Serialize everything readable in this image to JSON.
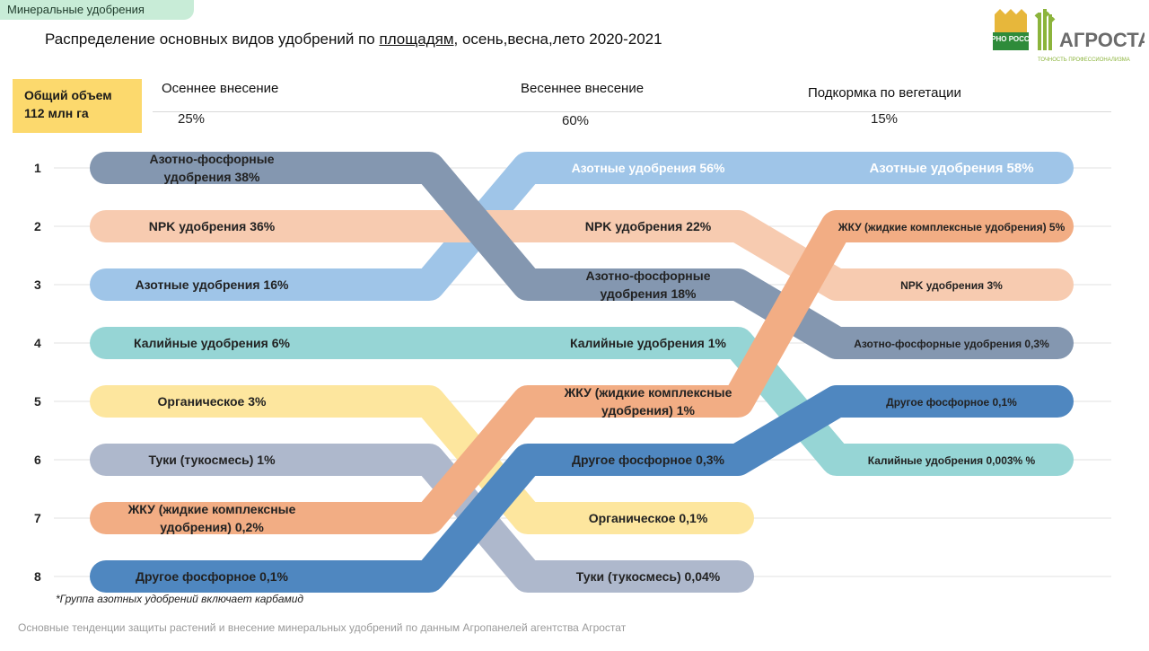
{
  "tag": "Минеральные удобрения",
  "title": {
    "before": "Распределение основных видов удобрений по ",
    "underlined": "площадям",
    "after": ", осень,весна,лето 2020-2021"
  },
  "logo": {
    "left_text": "ЗЕРНО РОССИИ",
    "brand": "АГРОСТАТ",
    "tagline": "ТОЧНОСТЬ ПРОФЕССИОНАЛИЗМА"
  },
  "volume": {
    "line1": "Общий объем",
    "line2": "112 млн га"
  },
  "footnote": "*Группа азотных удобрений включает карбамид",
  "footer": "Основные тенденции защиты растений и внесение минеральных удобрений  по данным Агропанелей агентства Агростат",
  "colors": {
    "nitrogen": "#9fc5e8",
    "npk": "#f7cbb0",
    "nitro_phos": "#8497b0",
    "potash": "#96d5d5",
    "organic": "#fde69e",
    "tuki": "#aeb8cc",
    "zhku": "#f2ad84",
    "other_phos": "#4f87c0"
  },
  "chart_data": {
    "type": "bump",
    "row_labels": [
      "1",
      "2",
      "3",
      "4",
      "5",
      "6",
      "7",
      "8"
    ],
    "columns": [
      {
        "name": "Осеннее внесение",
        "share": "25%"
      },
      {
        "name": "Весеннее внесение",
        "share": "60%"
      },
      {
        "name": "Подкормка по вегетации",
        "share": "15%"
      }
    ],
    "series": [
      {
        "key": "nitrogen",
        "ranks": [
          3,
          1,
          1
        ],
        "labels": [
          [
            "Азотные удобрения 16%"
          ],
          [
            "Азотные удобрения 56%"
          ],
          [
            "Азотные удобрения 58%"
          ]
        ],
        "values": [
          16,
          56,
          58
        ]
      },
      {
        "key": "npk",
        "ranks": [
          2,
          2,
          3
        ],
        "labels": [
          [
            "NPK удобрения 36%"
          ],
          [
            "NPK удобрения 22%"
          ],
          [
            "NPK удобрения 3%"
          ]
        ],
        "values": [
          36,
          22,
          3
        ]
      },
      {
        "key": "nitro_phos",
        "ranks": [
          1,
          3,
          4
        ],
        "labels": [
          [
            "Азотно-фосфорные",
            "удобрения 38%"
          ],
          [
            "Азотно-фосфорные",
            "удобрения 18%"
          ],
          [
            "Азотно-фосфорные удобрения 0,3%"
          ]
        ],
        "values": [
          38,
          18,
          0.3
        ]
      },
      {
        "key": "potash",
        "ranks": [
          4,
          4,
          6
        ],
        "labels": [
          [
            "Калийные удобрения 6%"
          ],
          [
            "Калийные удобрения 1%"
          ],
          [
            "Калийные удобрения 0,003% %"
          ]
        ],
        "values": [
          6,
          1,
          0.003
        ]
      },
      {
        "key": "organic",
        "ranks": [
          5,
          7,
          null
        ],
        "labels": [
          [
            "Органическое 3%"
          ],
          [
            "Органическое 0,1%"
          ],
          []
        ],
        "values": [
          3,
          0.1,
          null
        ]
      },
      {
        "key": "tuki",
        "ranks": [
          6,
          8,
          null
        ],
        "labels": [
          [
            "Туки (тукосмесь) 1%"
          ],
          [
            "Туки (тукосмесь) 0,04%"
          ],
          []
        ],
        "values": [
          1,
          0.04,
          null
        ]
      },
      {
        "key": "zhku",
        "ranks": [
          7,
          5,
          2
        ],
        "labels": [
          [
            "ЖКУ (жидкие комплексные",
            "удобрения) 0,2%"
          ],
          [
            "ЖКУ (жидкие комплексные",
            "удобрения) 1%"
          ],
          [
            "ЖКУ (жидкие комплексные удобрения) 5%"
          ]
        ],
        "values": [
          0.2,
          1,
          5
        ]
      },
      {
        "key": "other_phos",
        "ranks": [
          8,
          6,
          5
        ],
        "labels": [
          [
            "Другое фосфорное 0,1%"
          ],
          [
            "Другое фосфорное 0,3%"
          ],
          [
            "Другое фосфорное 0,1%"
          ]
        ],
        "values": [
          0.1,
          0.3,
          0.1
        ]
      }
    ]
  }
}
